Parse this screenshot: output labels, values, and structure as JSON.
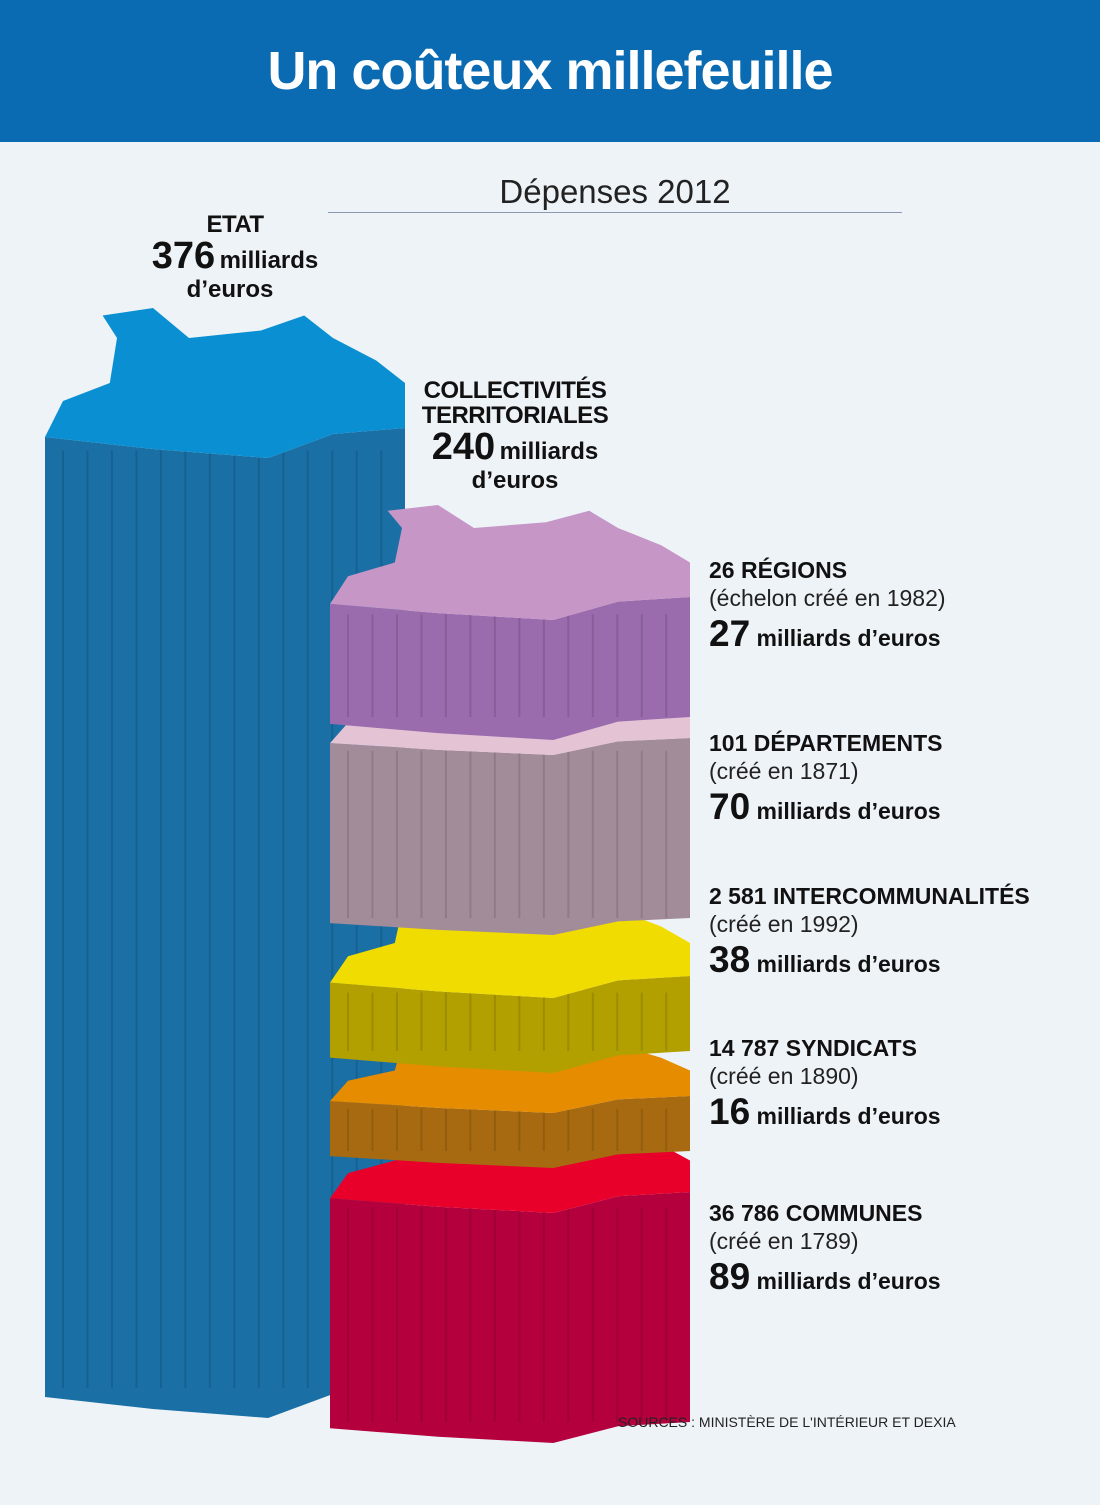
{
  "title": "Un coûteux millefeuille",
  "subtitle": "Dépenses 2012",
  "source": "SOURCES : MINISTÈRE DE L'INTÉRIEUR ET DEXIA",
  "unit": "milliards d’euros",
  "etat": {
    "name": "ETAT",
    "value": "376",
    "unit1": "milliards",
    "unit2": "d’euros"
  },
  "collectivites": {
    "name1": "COLLECTIVITÉS",
    "name2": "TERRITORIALES",
    "value": "240",
    "unit1": "milliards",
    "unit2": "d’euros"
  },
  "levels": [
    {
      "count": "26",
      "name": "RÉGIONS",
      "note": "(échelon créé en 1982)",
      "value": "27",
      "unit": "milliards d’euros"
    },
    {
      "count": "101",
      "name": "DÉPARTEMENTS",
      "note": "(créé en 1871)",
      "value": "70",
      "unit": "milliards d’euros"
    },
    {
      "count": "2 581",
      "name": "INTERCOMMUNALITÉS",
      "note": "(créé en 1992)",
      "value": "38",
      "unit": "milliards d’euros"
    },
    {
      "count": "14 787",
      "name": "SYNDICATS",
      "note": "(créé en 1890)",
      "value": "16",
      "unit": "milliards d’euros"
    },
    {
      "count": "36 786",
      "name": "COMMUNES",
      "note": "(créé en 1789)",
      "value": "89",
      "unit": "milliards d’euros"
    }
  ],
  "chart_data": {
    "type": "bar",
    "title": "Un coûteux millefeuille",
    "subtitle": "Dépenses 2012",
    "unit": "milliards d’euros",
    "categories": [
      "ETAT",
      "COLLECTIVITÉS TERRITORIALES"
    ],
    "values": [
      376,
      240
    ],
    "stack": {
      "category": "COLLECTIVITÉS TERRITORIALES",
      "segments": [
        {
          "name": "RÉGIONS",
          "value": 27,
          "top_color": "#c596c6",
          "side_color": "#9a6cae"
        },
        {
          "name": "DÉPARTEMENTS",
          "value": 70,
          "top_color": "#e4c3d5",
          "side_color": "#a38c99"
        },
        {
          "name": "INTERCOMMUNALITÉS",
          "value": 38,
          "top_color": "#f0dc00",
          "side_color": "#b2a000"
        },
        {
          "name": "SYNDICATS",
          "value": 16,
          "top_color": "#e58c00",
          "side_color": "#a86a10"
        },
        {
          "name": "COMMUNES",
          "value": 89,
          "top_color": "#e8002a",
          "side_color": "#b5003e"
        }
      ]
    },
    "colors": {
      "etat_top": "#0a90d2",
      "etat_side": "#1a6fa5",
      "banner": "#0a6bb3"
    }
  }
}
